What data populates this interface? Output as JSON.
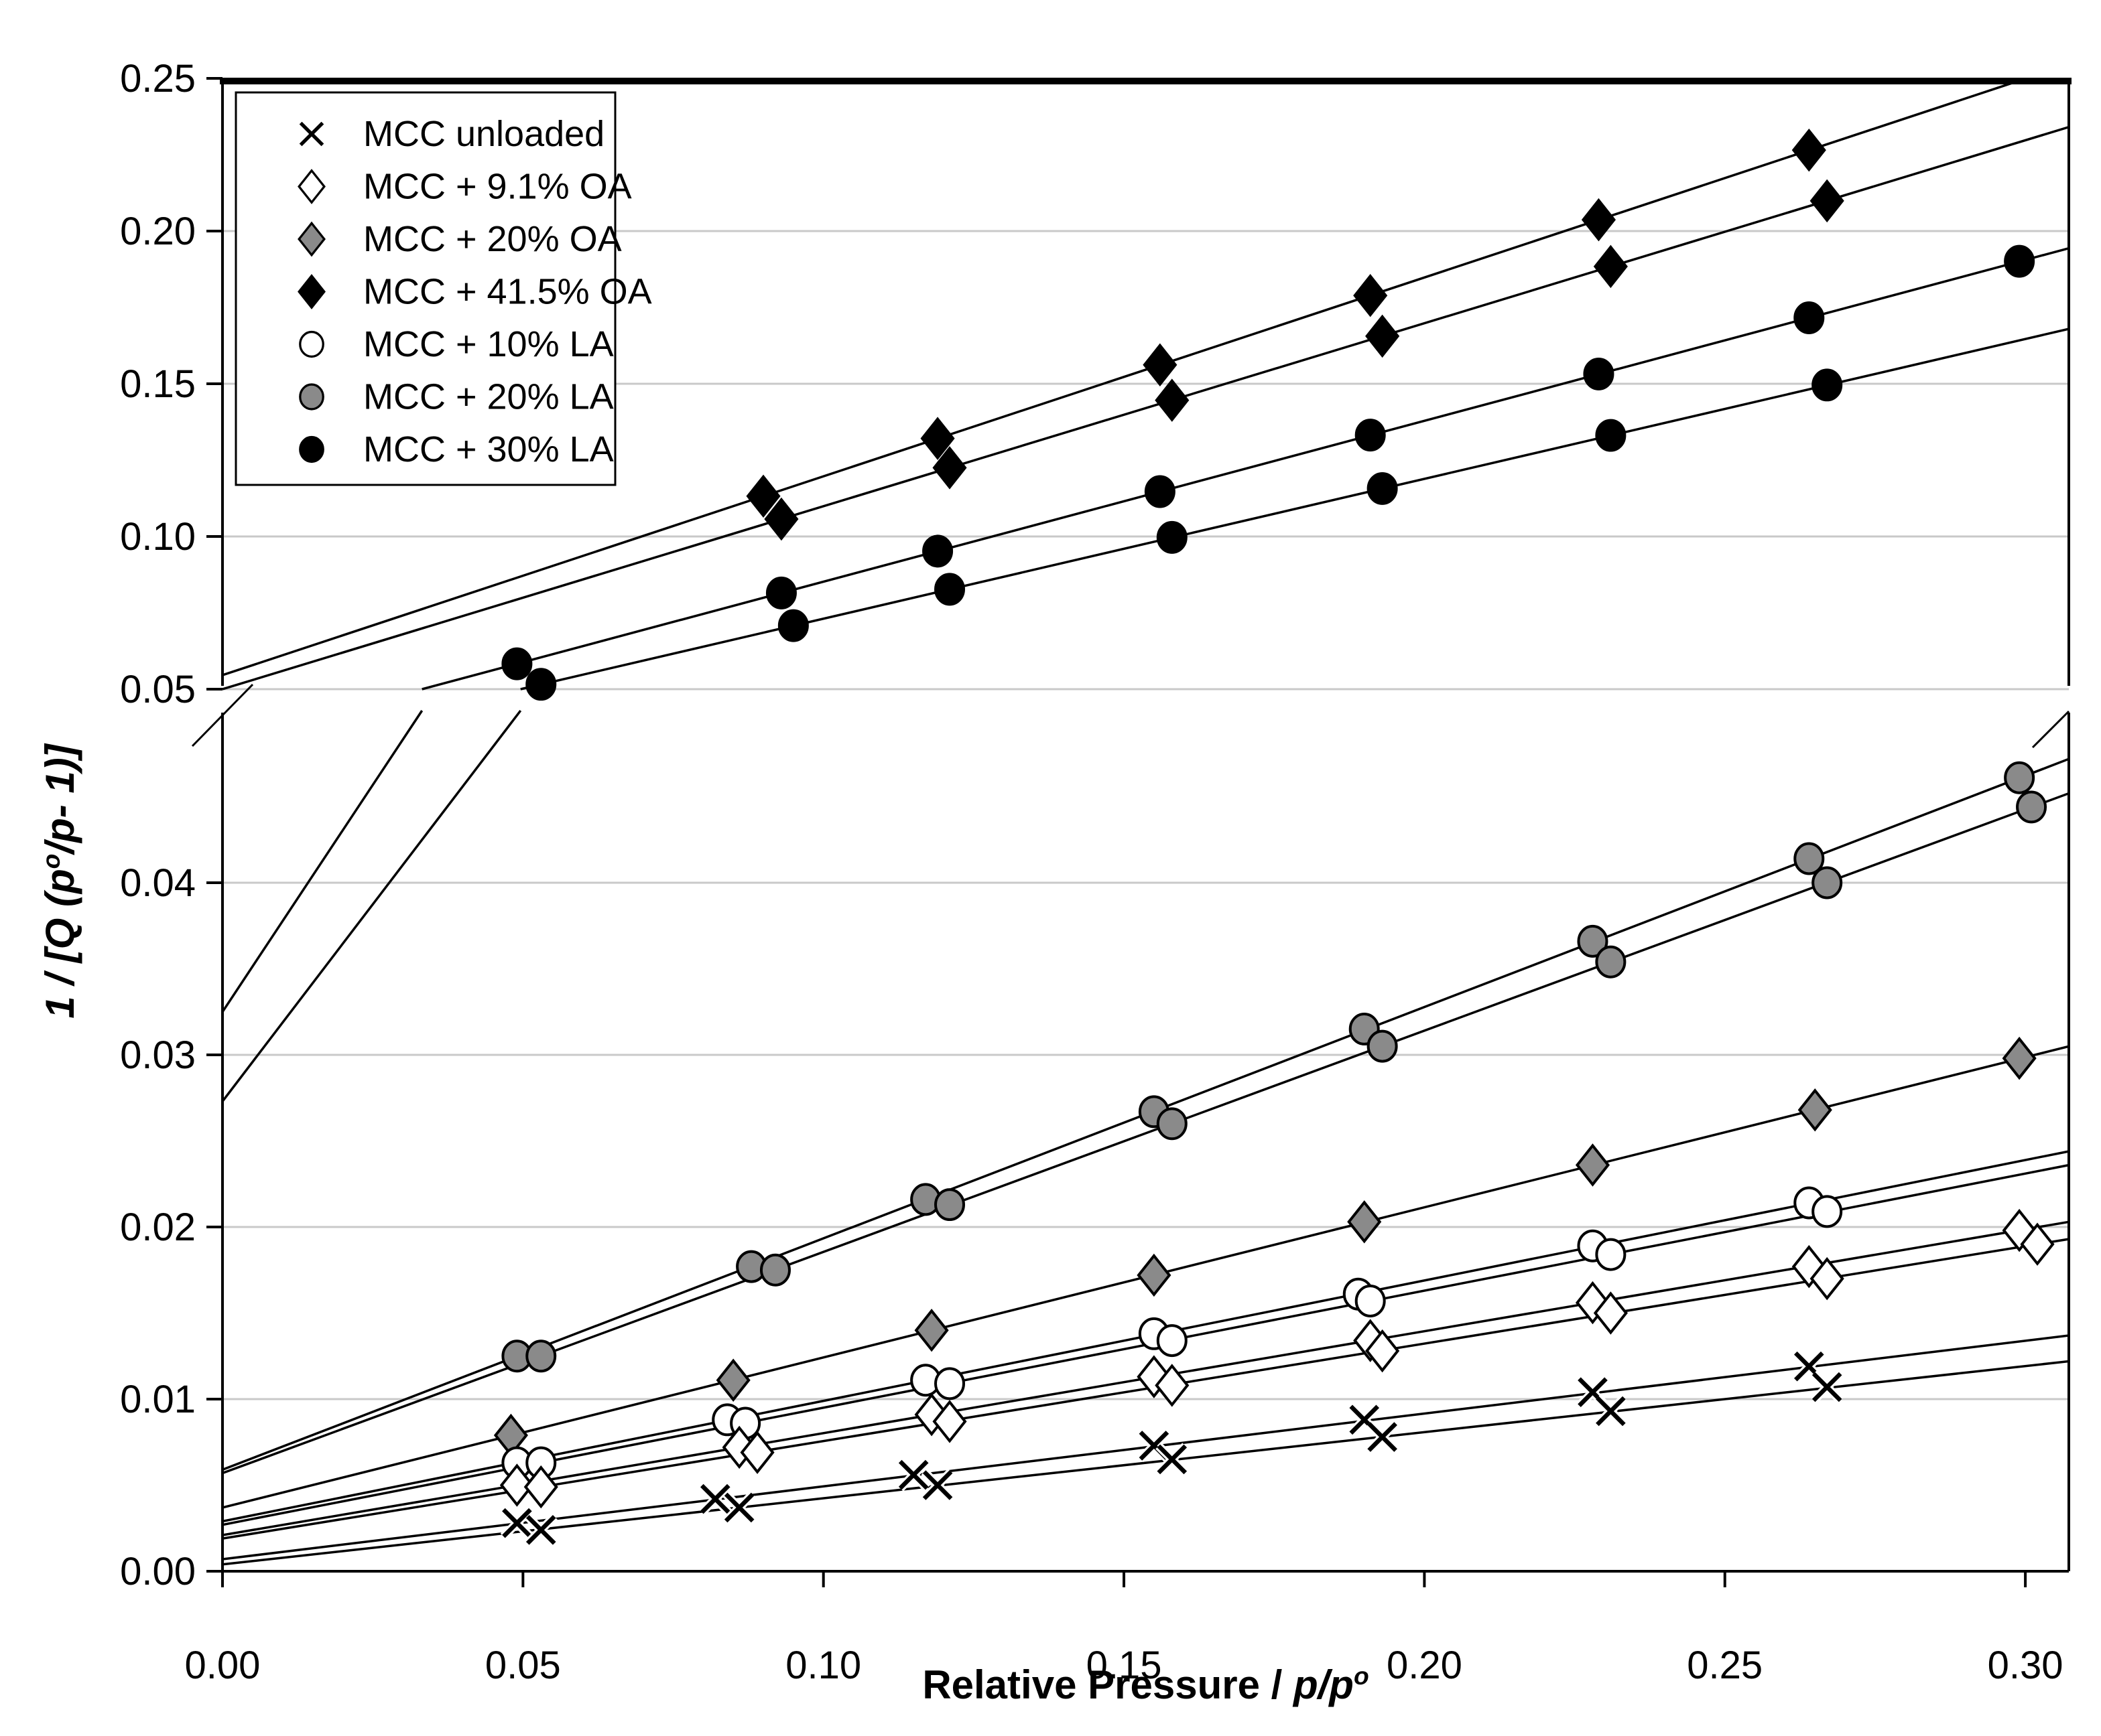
{
  "chart_data": {
    "type": "scatter",
    "title": "",
    "xlabel_parts": [
      {
        "t": "Relative Pressure /  ",
        "style": "bold"
      },
      {
        "t": "p/p",
        "style": "bold-italic"
      },
      {
        "t": "o",
        "style": "bold-italic",
        "sup": true
      }
    ],
    "ylabel_parts": [
      {
        "t": "1 / [Q (p",
        "style": "bold-italic"
      },
      {
        "t": "o",
        "style": "bold-italic",
        "sup": true
      },
      {
        "t": "/p- 1)]",
        "style": "bold-italic"
      }
    ],
    "x_axis": {
      "range": [
        0.0,
        0.3073
      ],
      "ticks": [
        {
          "label": "0.00",
          "value": 0.0
        },
        {
          "label": "0.05",
          "value": 0.05
        },
        {
          "label": "0.10",
          "value": 0.1
        },
        {
          "label": "0.15",
          "value": 0.15
        },
        {
          "label": "0.20",
          "value": 0.2
        },
        {
          "label": "0.25",
          "value": 0.25
        },
        {
          "label": "0.30",
          "value": 0.3
        }
      ]
    },
    "y_axis": {
      "broken": true,
      "break_note": "axis break at 0.05: upper region scale 0.05-0.25, lower magnified region 0.00-0.05",
      "top_scale": {
        "range": [
          0.05,
          0.25
        ],
        "ticks": [
          {
            "label": "0.25",
            "value": 0.25
          },
          {
            "label": "0.20",
            "value": 0.2
          },
          {
            "label": "0.15",
            "value": 0.15
          },
          {
            "label": "0.10",
            "value": 0.1
          },
          {
            "label": "0.05",
            "value": 0.05
          }
        ],
        "gridlines": [
          0.2,
          0.15,
          0.1,
          0.05
        ]
      },
      "bottom_scale": {
        "range": [
          0.0,
          0.05
        ],
        "ticks": [
          {
            "label": "0.04",
            "value": 0.04
          },
          {
            "label": "0.03",
            "value": 0.03
          },
          {
            "label": "0.02",
            "value": 0.02
          },
          {
            "label": "0.01",
            "value": 0.01
          },
          {
            "label": "0.00",
            "value": 0.0
          }
        ],
        "gridlines": [
          0.04,
          0.03,
          0.02,
          0.01
        ]
      }
    },
    "colors": {
      "black": "#000000",
      "gray": "#8a8a8a",
      "white": "#ffffff",
      "gridline": "#c9c9c9",
      "frame": "#000000"
    },
    "legend": {
      "items": [
        {
          "label": "MCC unloaded",
          "marker": "x"
        },
        {
          "label": "MCC + 9.1% OA",
          "marker": "diamond-open"
        },
        {
          "label": "MCC + 20% OA",
          "marker": "diamond-gray"
        },
        {
          "label": "MCC + 41.5% OA",
          "marker": "diamond-black"
        },
        {
          "label": "MCC + 10% LA",
          "marker": "circle-open"
        },
        {
          "label": "MCC + 20% LA",
          "marker": "circle-gray"
        },
        {
          "label": "MCC + 30% LA",
          "marker": "circle-black"
        }
      ]
    },
    "series": [
      {
        "id": "mcc-41-5-oa",
        "name": "MCC + 41.5% OA",
        "marker": "diamond-black",
        "scale": "top",
        "replicates": [
          {
            "fit_line": {
              "scale": "top",
              "pts": [
                [
                  0,
                  0.0546
                ],
                [
                  0.3,
                  0.2499
                ]
              ]
            },
            "points": [
              [
                0.09,
                0.1132
              ],
              [
                0.119,
                0.1321
              ],
              [
                0.156,
                0.1562
              ],
              [
                0.191,
                0.1789
              ],
              [
                0.229,
                0.2037
              ],
              [
                0.264,
                0.2265
              ]
            ]
          },
          {
            "fit_line": {
              "scale": "top",
              "pts": [
                [
                  0,
                  0.05
                ],
                [
                  0.3073,
                  0.2341
                ]
              ]
            },
            "points": [
              [
                0.093,
                0.1057
              ],
              [
                0.121,
                0.1225
              ],
              [
                0.158,
                0.1446
              ],
              [
                0.193,
                0.1656
              ],
              [
                0.231,
                0.1884
              ],
              [
                0.267,
                0.2099
              ]
            ]
          }
        ]
      },
      {
        "id": "mcc-30-la",
        "name": "MCC + 30% LA",
        "marker": "circle-black",
        "scale": "top",
        "replicates": [
          {
            "fit_line": {
              "scale": "top",
              "pts": [
                [
                  0.0332,
                  0.05
                ],
                [
                  0.3073,
                  0.1944
                ]
              ]
            },
            "extra_segments": [
              {
                "scale": "bottom",
                "pts": [
                  [
                    0,
                    0.0325
                  ],
                  [
                    0.0332,
                    0.05
                  ]
                ]
              }
            ],
            "points": [
              [
                0.049,
                0.0583
              ],
              [
                0.093,
                0.0815
              ],
              [
                0.119,
                0.0952
              ],
              [
                0.156,
                0.1147
              ],
              [
                0.191,
                0.1332
              ],
              [
                0.229,
                0.1532
              ],
              [
                0.264,
                0.1716
              ],
              [
                0.299,
                0.1901
              ]
            ]
          },
          {
            "fit_line": {
              "scale": "top",
              "pts": [
                [
                  0.0496,
                  0.05
                ],
                [
                  0.3073,
                  0.168
                ]
              ]
            },
            "extra_segments": [
              {
                "scale": "bottom",
                "pts": [
                  [
                    0,
                    0.0273
                  ],
                  [
                    0.0496,
                    0.05
                  ]
                ]
              }
            ],
            "points": [
              [
                0.053,
                0.0516
              ],
              [
                0.095,
                0.0708
              ],
              [
                0.121,
                0.0827
              ],
              [
                0.158,
                0.0997
              ],
              [
                0.193,
                0.1157
              ],
              [
                0.231,
                0.1331
              ],
              [
                0.267,
                0.1496
              ]
            ]
          }
        ]
      },
      {
        "id": "mcc-20-la",
        "name": "MCC + 20% LA",
        "marker": "circle-gray",
        "scale": "bottom",
        "replicates": [
          {
            "fit_line": {
              "scale": "bottom",
              "pts": [
                [
                  0,
                  0.0059
                ],
                [
                  0.3073,
                  0.0472
                ]
              ]
            },
            "points": [
              [
                0.049,
                0.0125
              ],
              [
                0.088,
                0.0177
              ],
              [
                0.117,
                0.0216
              ],
              [
                0.155,
                0.0267
              ],
              [
                0.19,
                0.0315
              ],
              [
                0.228,
                0.0366
              ],
              [
                0.264,
                0.0414
              ],
              [
                0.299,
                0.0461
              ]
            ]
          },
          {
            "fit_line": {
              "scale": "bottom",
              "pts": [
                [
                  0,
                  0.0057
                ],
                [
                  0.3073,
                  0.0452
                ]
              ]
            },
            "points": [
              [
                0.053,
                0.0125
              ],
              [
                0.092,
                0.0175
              ],
              [
                0.121,
                0.0213
              ],
              [
                0.158,
                0.026
              ],
              [
                0.193,
                0.0305
              ],
              [
                0.231,
                0.0354
              ],
              [
                0.267,
                0.04
              ],
              [
                0.301,
                0.0444
              ]
            ]
          }
        ]
      },
      {
        "id": "mcc-20-oa",
        "name": "MCC + 20% OA",
        "marker": "diamond-gray",
        "scale": "bottom",
        "replicates": [
          {
            "fit_line": {
              "scale": "bottom",
              "pts": [
                [
                  0,
                  0.0037
                ],
                [
                  0.3073,
                  0.0305
                ]
              ]
            },
            "points": [
              [
                0.048,
                0.0079
              ],
              [
                0.085,
                0.0111
              ],
              [
                0.118,
                0.014
              ],
              [
                0.155,
                0.0172
              ],
              [
                0.19,
                0.0203
              ],
              [
                0.228,
                0.0236
              ],
              [
                0.265,
                0.0268
              ],
              [
                0.299,
                0.0298
              ]
            ]
          }
        ]
      },
      {
        "id": "mcc-10-la",
        "name": "MCC + 10% LA",
        "marker": "circle-open",
        "scale": "bottom",
        "replicates": [
          {
            "fit_line": {
              "scale": "bottom",
              "pts": [
                [
                  0,
                  0.0029
                ],
                [
                  0.3073,
                  0.0244
                ]
              ]
            },
            "points": [
              [
                0.049,
                0.0063
              ],
              [
                0.084,
                0.0088
              ],
              [
                0.117,
                0.0111
              ],
              [
                0.155,
                0.0138
              ],
              [
                0.189,
                0.0161
              ],
              [
                0.228,
                0.0189
              ],
              [
                0.264,
                0.0214
              ]
            ]
          },
          {
            "fit_line": {
              "scale": "bottom",
              "pts": [
                [
                  0,
                  0.0027
                ],
                [
                  0.3073,
                  0.0236
                ]
              ]
            },
            "points": [
              [
                0.053,
                0.0063
              ],
              [
                0.087,
                0.0086
              ],
              [
                0.121,
                0.0109
              ],
              [
                0.158,
                0.0134
              ],
              [
                0.191,
                0.0157
              ],
              [
                0.231,
                0.0184
              ],
              [
                0.267,
                0.0209
              ]
            ]
          }
        ]
      },
      {
        "id": "mcc-9-1-oa",
        "name": "MCC + 9.1% OA",
        "marker": "diamond-open",
        "scale": "bottom",
        "replicates": [
          {
            "fit_line": {
              "scale": "bottom",
              "pts": [
                [
                  0,
                  0.0021
                ],
                [
                  0.3073,
                  0.0203
                ]
              ]
            },
            "points": [
              [
                0.049,
                0.005
              ],
              [
                0.086,
                0.0072
              ],
              [
                0.118,
                0.0091
              ],
              [
                0.155,
                0.0113
              ],
              [
                0.191,
                0.0134
              ],
              [
                0.228,
                0.0156
              ],
              [
                0.264,
                0.0177
              ],
              [
                0.299,
                0.0198
              ]
            ]
          },
          {
            "fit_line": {
              "scale": "bottom",
              "pts": [
                [
                  0,
                  0.0019
                ],
                [
                  0.3073,
                  0.0193
                ]
              ]
            },
            "points": [
              [
                0.053,
                0.0049
              ],
              [
                0.089,
                0.0069
              ],
              [
                0.121,
                0.0087
              ],
              [
                0.158,
                0.0108
              ],
              [
                0.193,
                0.0128
              ],
              [
                0.231,
                0.015
              ],
              [
                0.267,
                0.017
              ],
              [
                0.302,
                0.019
              ]
            ]
          }
        ]
      },
      {
        "id": "mcc-unloaded",
        "name": "MCC unloaded",
        "marker": "x",
        "scale": "bottom",
        "replicates": [
          {
            "fit_line": {
              "scale": "bottom",
              "pts": [
                [
                  0,
                  0.0007
                ],
                [
                  0.3073,
                  0.0137
                ]
              ]
            },
            "points": [
              [
                0.049,
                0.0028
              ],
              [
                0.082,
                0.0042
              ],
              [
                0.115,
                0.0056
              ],
              [
                0.155,
                0.0073
              ],
              [
                0.19,
                0.0088
              ],
              [
                0.228,
                0.0104
              ],
              [
                0.264,
                0.0119
              ]
            ]
          },
          {
            "fit_line": {
              "scale": "bottom",
              "pts": [
                [
                  0,
                  0.0004
                ],
                [
                  0.3073,
                  0.0122
                ]
              ]
            },
            "points": [
              [
                0.053,
                0.0024
              ],
              [
                0.086,
                0.0037
              ],
              [
                0.119,
                0.005
              ],
              [
                0.158,
                0.0065
              ],
              [
                0.193,
                0.0078
              ],
              [
                0.231,
                0.0093
              ],
              [
                0.267,
                0.0107
              ]
            ]
          }
        ]
      }
    ]
  }
}
